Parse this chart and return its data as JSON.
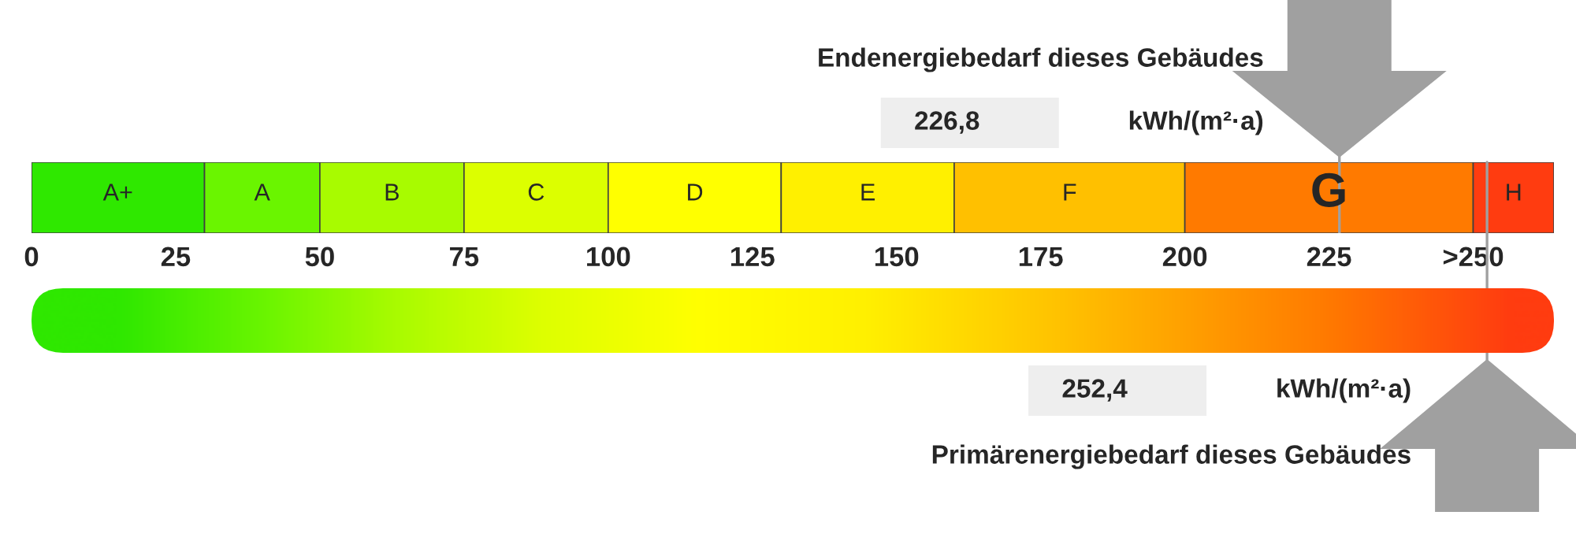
{
  "chart_data": {
    "type": "bar",
    "orientation": "horizontal",
    "stacked": true,
    "categories": [
      null
    ],
    "xlim": [
      0,
      264
    ],
    "xticks": [
      0,
      25,
      50,
      75,
      100,
      125,
      150,
      175,
      200,
      225,
      {
        "value": 250,
        "label": ">250"
      }
    ],
    "series": [
      {
        "name": "A+",
        "color": "#2fe800",
        "values": [
          30
        ]
      },
      {
        "name": "A",
        "color": "#6af500",
        "values": [
          20
        ]
      },
      {
        "name": "B",
        "color": "#a8fb00",
        "values": [
          25
        ]
      },
      {
        "name": "C",
        "color": "#dcff00",
        "values": [
          25
        ]
      },
      {
        "name": "D",
        "color": "#ffff00",
        "values": [
          30
        ]
      },
      {
        "name": "E",
        "color": "#fff000",
        "values": [
          30
        ]
      },
      {
        "name": "F",
        "color": "#ffc000",
        "values": [
          40
        ]
      },
      {
        "name": "G",
        "color": "#ff7a00",
        "values": [
          50
        ]
      },
      {
        "name": "H",
        "color": "#ff3c10",
        "values": [
          14
        ]
      }
    ],
    "ref_lines": [
      {
        "axis": "x",
        "value": 226.8,
        "label": "Endenergiebedarf dieses Gebäudes",
        "color": "#a0a0a0"
      },
      {
        "axis": "x",
        "value": 252.4,
        "label": "Primärenergiebedarf dieses Gebäudes",
        "color": "#a0a0a0"
      }
    ],
    "annotations": [
      "226,8",
      "kWh/(m²·a)",
      "252,4",
      "kWh/(m²·a)"
    ]
  }
}
